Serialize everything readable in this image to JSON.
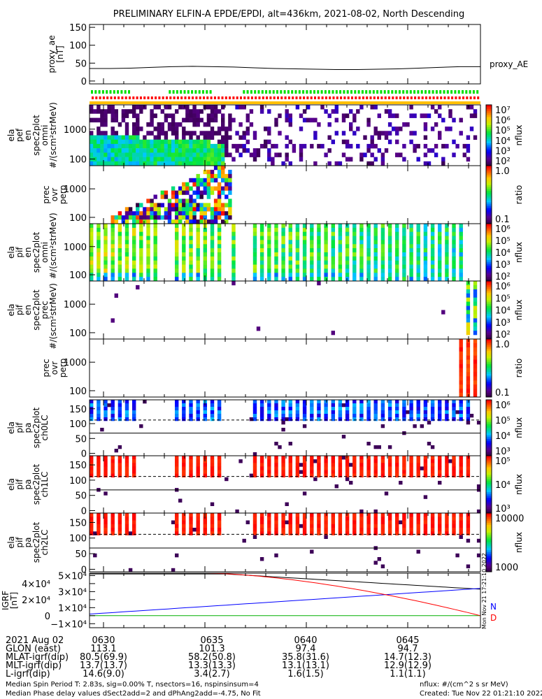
{
  "chart_data": {
    "type": "heatmap",
    "title": "PRELIMINARY ELFIN-A EPDE/EPDI, alt=436km, 2021-08-02, North Descending",
    "time_range_minutes": [
      29.3,
      48.6
    ],
    "colors": {
      "ae_line": "#000000",
      "igrf_n": "#0000ff",
      "igrf_e": "#000000",
      "igrf_d": "#ff0000",
      "igrf_zero": "#00b000",
      "marker_green": "#00e000",
      "marker_red": "#ff0000",
      "marker_orange": "#ffc000"
    },
    "panels": [
      {
        "id": "proxy-ae",
        "ylabel": [
          "proxy_ae",
          "[nT]"
        ],
        "scale": "linear",
        "ylim": [
          -8,
          158
        ],
        "ticks": [
          {
            "v": 150,
            "t": "150"
          },
          {
            "v": 100,
            "t": "100"
          },
          {
            "v": 50,
            "t": "50"
          },
          {
            "v": 0,
            "t": "0"
          }
        ],
        "legend": "proxy_AE",
        "series": [
          35,
          35,
          36,
          38,
          40,
          41,
          40,
          39,
          37,
          35,
          34,
          33,
          32,
          32,
          33,
          34,
          36,
          38,
          40,
          40
        ]
      },
      {
        "id": "pef-en-omni",
        "ylabel": [
          "ela",
          "pef",
          "en",
          "spec2plot",
          "omni",
          "#/(scm²strMeV)"
        ],
        "scale": "log",
        "ylim": [
          60,
          6500
        ],
        "ticks": [
          {
            "v": 1000,
            "t": "1000"
          },
          {
            "v": 100,
            "t": "100"
          }
        ],
        "cbar": {
          "labels": [
            "10⁷",
            "10⁶",
            "10⁵",
            "10⁴",
            "10³",
            "10²"
          ],
          "unit": "nflux"
        }
      },
      {
        "id": "pef-prec-ovr-perp",
        "ylabel": [
          "prec",
          "ovr",
          "perp"
        ],
        "scale": "log",
        "ylim": [
          60,
          6500
        ],
        "ticks": [
          {
            "v": 1000,
            "t": "1000"
          },
          {
            "v": 100,
            "t": "100"
          }
        ],
        "cbar": {
          "labels": [
            "1.0",
            "0.1"
          ],
          "unit": "ratio"
        }
      },
      {
        "id": "pif-en-omni",
        "ylabel": [
          "ela",
          "pif",
          "en",
          "spec2plot",
          "omni",
          "#/(scm²strMeV)"
        ],
        "scale": "log",
        "ylim": [
          60,
          6500
        ],
        "ticks": [
          {
            "v": 1000,
            "t": "1000"
          },
          {
            "v": 100,
            "t": "100"
          }
        ],
        "cbar": {
          "labels": [
            "10⁶",
            "10⁵",
            "10⁴",
            "10³",
            "10²"
          ],
          "unit": "nflux"
        }
      },
      {
        "id": "pif-en-prec",
        "ylabel": [
          "ela",
          "pif",
          "en",
          "spec2plot",
          "prec",
          "#/(scm²strMeV)"
        ],
        "scale": "log",
        "ylim": [
          60,
          6500
        ],
        "ticks": [
          {
            "v": 1000,
            "t": "1000"
          },
          {
            "v": 100,
            "t": "100"
          }
        ],
        "cbar": {
          "labels": [
            "10⁶",
            "10⁵",
            "10⁴",
            "10³",
            "10²"
          ],
          "unit": "nflux"
        }
      },
      {
        "id": "pif-prec-ovr-perp",
        "ylabel": [
          "prec",
          "ovr",
          "perp"
        ],
        "scale": "log",
        "ylim": [
          60,
          6500
        ],
        "ticks": [
          {
            "v": 1000,
            "t": "1000"
          },
          {
            "v": 100,
            "t": "100"
          }
        ],
        "cbar": {
          "labels": [
            "1.0",
            "0.1"
          ],
          "unit": "ratio"
        }
      },
      {
        "id": "pa-ch0LC",
        "ylabel": [
          "ela",
          "pif",
          "pa",
          "spec2plot",
          "ch0LC"
        ],
        "scale": "linear",
        "ylim": [
          -8,
          180
        ],
        "ticks": [
          {
            "v": 150,
            "t": "150"
          },
          {
            "v": 100,
            "t": "100"
          },
          {
            "v": 50,
            "t": "50"
          },
          {
            "v": 0,
            "t": "0"
          }
        ],
        "cbar": {
          "labels": [
            "10⁶",
            "10⁵",
            "10⁴",
            "10³"
          ],
          "unit": "nflux"
        }
      },
      {
        "id": "pa-ch1LC",
        "ylabel": [
          "ela",
          "pif",
          "pa",
          "spec2plot",
          "ch1LC"
        ],
        "scale": "linear",
        "ylim": [
          -8,
          180
        ],
        "ticks": [
          {
            "v": 150,
            "t": "150"
          },
          {
            "v": 100,
            "t": "100"
          },
          {
            "v": 50,
            "t": "50"
          },
          {
            "v": 0,
            "t": "0"
          }
        ],
        "cbar": {
          "labels": [
            "10⁵",
            "10⁴",
            "10³"
          ],
          "unit": "nflux"
        }
      },
      {
        "id": "pa-ch2LC",
        "ylabel": [
          "ela",
          "pif",
          "pa",
          "spec2plot",
          "ch2LC"
        ],
        "scale": "linear",
        "ylim": [
          -8,
          180
        ],
        "ticks": [
          {
            "v": 150,
            "t": "150"
          },
          {
            "v": 100,
            "t": "100"
          },
          {
            "v": 50,
            "t": "50"
          },
          {
            "v": 0,
            "t": "0"
          }
        ],
        "cbar": {
          "labels": [
            "10000",
            "1000"
          ],
          "unit": "nflux"
        }
      },
      {
        "id": "igrf",
        "ylabel": [
          "IGRF",
          "[nT]"
        ],
        "scale": "linear",
        "ylim": [
          -15000,
          53000
        ],
        "ticks": [
          {
            "v": 50000,
            "t": "5×10⁴"
          },
          {
            "v": 40000,
            "t": "4×10⁴"
          },
          {
            "v": 30000,
            "t": "3×10⁴"
          },
          {
            "v": 20000,
            "t": "2×10⁴"
          },
          {
            "v": 10000,
            "t": "1×10⁴"
          },
          {
            "v": 0,
            "t": "0"
          },
          {
            "v": -10000,
            "t": "−1×10⁴"
          }
        ],
        "legend_n": "N",
        "legend_d": "D"
      }
    ],
    "xaxis": {
      "rows": [
        {
          "label": "2021 Aug 02",
          "values": [
            "0630",
            "0635",
            "0640",
            "0645"
          ]
        },
        {
          "label": "GLON (east)",
          "values": [
            "113.1",
            "101.3",
            "97.4",
            "94.7"
          ]
        },
        {
          "label": "MLAT-igrf(dip)",
          "values": [
            "80.5(69.9)",
            "58.2(50.8)",
            "35.8(31.6)",
            "14.7(12.3)"
          ]
        },
        {
          "label": "MLT-igrf(dip)",
          "values": [
            "13.7(13.7)",
            "13.3(13.3)",
            "13.1(13.1)",
            "12.9(12.9)"
          ]
        },
        {
          "label": "L-igrf(dip)",
          "values": [
            "14.6(9.0)",
            "3.4(2.7)",
            "1.6(1.5)",
            "1.1(1.1)"
          ]
        }
      ],
      "tick_minutes": [
        30,
        35,
        40,
        45
      ]
    },
    "footer": {
      "line1": "Median Spin Period T: 2.83s, sig=0.00% T, nsectors=16, nspinsinsum=4",
      "line2": "Median Phase delay values dSect2add=2 and dPhAng2add=-4.75, No Fit",
      "units": "nflux: #/(cm^2 s sr MeV)",
      "created": "Created: Tue Nov 22 01:21:10 2022",
      "stamp": "Mon Nov 21 17:21:10 2022"
    }
  }
}
